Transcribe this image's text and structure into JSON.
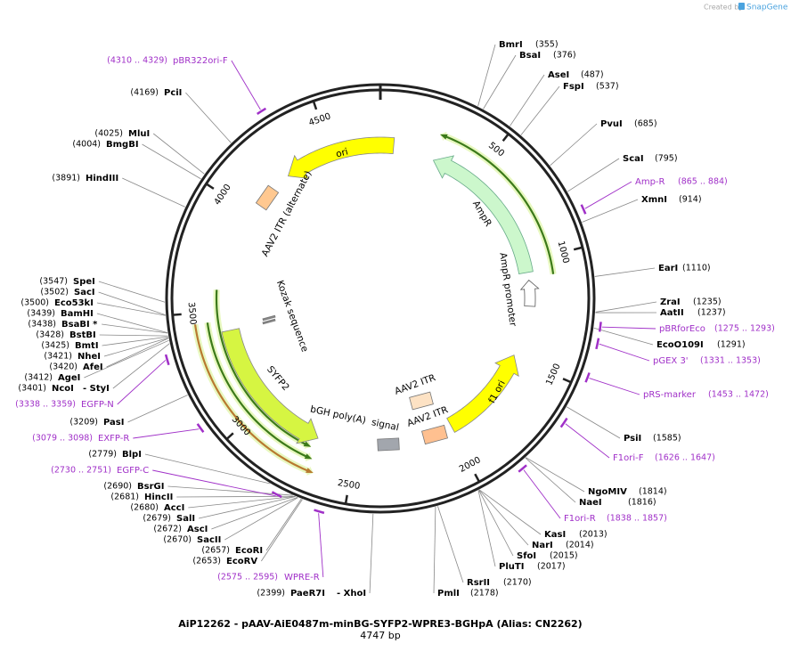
{
  "header": {
    "credit": "Created by",
    "brand": "SnapGene"
  },
  "title": "AiP12262 - pAAV-AiE0487m-minBG-SYFP2-WPRE3-BGHpA (Alias: CN2262)",
  "length": "4747 bp",
  "ruler": [
    500,
    1000,
    1500,
    2000,
    2500,
    3000,
    3500,
    4000,
    4500
  ],
  "sites": [
    {
      "name": "BmrI",
      "position": "(355)"
    },
    {
      "name": "BsaI",
      "position": "(376)"
    },
    {
      "name": "AseI",
      "position": "(487)"
    },
    {
      "name": "FspI",
      "position": "(537)"
    },
    {
      "name": "PvuI",
      "position": "(685)"
    },
    {
      "name": "ScaI",
      "position": "(795)"
    },
    {
      "name": "XmnI",
      "position": "(914)"
    },
    {
      "name": "EarI",
      "position": "(1110)"
    },
    {
      "name": "ZraI",
      "position": "(1235)"
    },
    {
      "name": "AatII",
      "position": "(1237)"
    },
    {
      "name": "EcoO109I",
      "position": "(1291)"
    },
    {
      "name": "PsiI",
      "position": "(1585)"
    },
    {
      "name": "NgoMIV",
      "position": "(1814)"
    },
    {
      "name": "NaeI",
      "position": "(1816)"
    },
    {
      "name": "KasI",
      "position": "(2013)"
    },
    {
      "name": "NarI",
      "position": "(2014)"
    },
    {
      "name": "SfoI",
      "position": "(2015)"
    },
    {
      "name": "PluTI",
      "position": "(2017)"
    },
    {
      "name": "RsrII",
      "position": "(2170)"
    },
    {
      "name": "PmlI",
      "position": "(2178)"
    },
    {
      "name": "PaeR7I",
      "position": "(2399)",
      "also": "- XhoI"
    },
    {
      "name": "EcoRV",
      "position": "(2653)"
    },
    {
      "name": "EcoRI",
      "position": "(2657)"
    },
    {
      "name": "SacII",
      "position": "(2670)"
    },
    {
      "name": "AscI",
      "position": "(2672)"
    },
    {
      "name": "SalI",
      "position": "(2679)"
    },
    {
      "name": "AccI",
      "position": "(2680)"
    },
    {
      "name": "HincII",
      "position": "(2681)"
    },
    {
      "name": "BsrGI",
      "position": "(2690)"
    },
    {
      "name": "BlpI",
      "position": "(2779)"
    },
    {
      "name": "PasI",
      "position": "(3209)"
    },
    {
      "name": "NcoI",
      "position": "(3401)",
      "also": "- StyI"
    },
    {
      "name": "AgeI",
      "position": "(3412)"
    },
    {
      "name": "AfeI",
      "position": "(3420)"
    },
    {
      "name": "NheI",
      "position": "(3421)"
    },
    {
      "name": "BmtI",
      "position": "(3425)"
    },
    {
      "name": "BstBI",
      "position": "(3428)"
    },
    {
      "name": "BsaBI *",
      "position": "(3438)"
    },
    {
      "name": "BamHI",
      "position": "(3439)"
    },
    {
      "name": "Eco53kI",
      "position": "(3500)"
    },
    {
      "name": "SacI",
      "position": "(3502)"
    },
    {
      "name": "SpeI",
      "position": "(3547)"
    },
    {
      "name": "HindIII",
      "position": "(3891)"
    },
    {
      "name": "BmgBI",
      "position": "(4004)"
    },
    {
      "name": "MluI",
      "position": "(4025)"
    },
    {
      "name": "PciI",
      "position": "(4169)"
    }
  ],
  "primers": [
    {
      "name": "pBR322ori-F",
      "range": "(4310 .. 4329)"
    },
    {
      "name": "Amp-R",
      "range": "(865 .. 884)"
    },
    {
      "name": "pBRforEco",
      "range": "(1275 .. 1293)"
    },
    {
      "name": "pGEX 3'",
      "range": "(1331 .. 1353)"
    },
    {
      "name": "pRS-marker",
      "range": "(1453 .. 1472)"
    },
    {
      "name": "F1ori-F",
      "range": "(1626 .. 1647)"
    },
    {
      "name": "F1ori-R",
      "range": "(1838 .. 1857)"
    },
    {
      "name": "WPRE-R",
      "range": "(2575 .. 2595)"
    },
    {
      "name": "EGFP-C",
      "range": "(2730 .. 2751)"
    },
    {
      "name": "EXFP-R",
      "range": "(3079 .. 3098)"
    },
    {
      "name": "EGFP-N",
      "range": "(3338 .. 3359)"
    }
  ],
  "features": [
    "ori",
    "AmpR",
    "AmpR promoter",
    "f1 ori",
    "AAV2 ITR",
    "AAV2 ITR",
    "AAV2 ITR (alternate)",
    "Kozak sequence",
    "SYFP2",
    "bGH poly(A)  signal"
  ]
}
